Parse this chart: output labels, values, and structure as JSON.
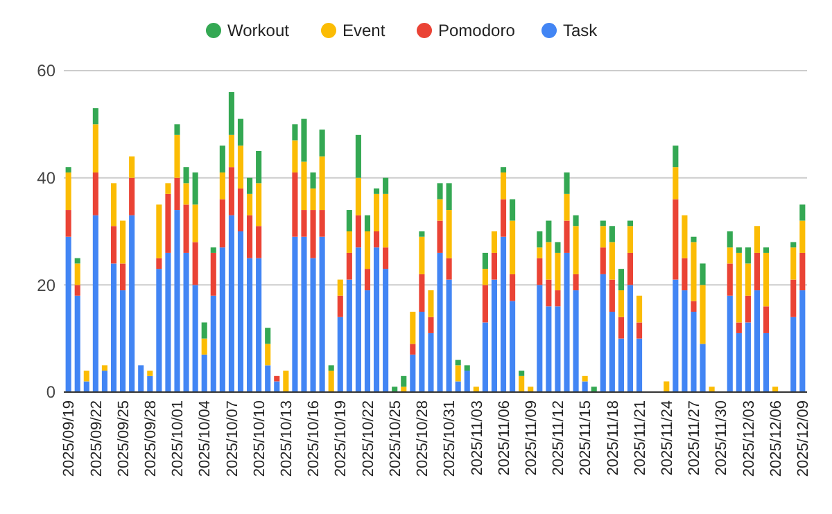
{
  "chart_data": {
    "type": "bar",
    "stacked": true,
    "legend": "top",
    "grid": "y",
    "ylim": [
      0,
      60
    ],
    "yticks": [
      0,
      20,
      40,
      60
    ],
    "categories": [
      "2025/09/19",
      null,
      null,
      "2025/09/22",
      null,
      null,
      "2025/09/25",
      null,
      null,
      "2025/09/28",
      null,
      null,
      "2025/10/01",
      null,
      null,
      "2025/10/04",
      null,
      null,
      "2025/10/07",
      null,
      null,
      "2025/10/10",
      null,
      null,
      "2025/10/13",
      null,
      null,
      "2025/10/16",
      null,
      null,
      "2025/10/19",
      null,
      null,
      "2025/10/22",
      null,
      null,
      "2025/10/25",
      null,
      null,
      "2025/10/28",
      null,
      null,
      "2025/10/31",
      null,
      null,
      "2025/11/03",
      null,
      null,
      "2025/11/06",
      null,
      null,
      "2025/11/09",
      null,
      null,
      "2025/11/12",
      null,
      null,
      "2025/11/15",
      null,
      null,
      "2025/11/18",
      null,
      null,
      "2025/11/21",
      null,
      null,
      "2025/11/24",
      null,
      null,
      "2025/11/27",
      null,
      null,
      "2025/11/30",
      null,
      null,
      "2025/12/03",
      null,
      null,
      "2025/12/06",
      null,
      null,
      "2025/12/09"
    ],
    "series": [
      {
        "name": "Task",
        "color": "#4285f4",
        "values": [
          29,
          18,
          2,
          33,
          4,
          24,
          19,
          33,
          5,
          3,
          23,
          26,
          34,
          26,
          20,
          7,
          18,
          27,
          33,
          30,
          25,
          25,
          5,
          2,
          0,
          29,
          29,
          25,
          29,
          0,
          14,
          21,
          27,
          19,
          27,
          23,
          0,
          0,
          7,
          15,
          11,
          26,
          21,
          2,
          4,
          0,
          13,
          21,
          29,
          17,
          0,
          0,
          20,
          16,
          16,
          26,
          19,
          2,
          0,
          22,
          15,
          10,
          20,
          10,
          0,
          0,
          0,
          21,
          19,
          15,
          9,
          0,
          0,
          18,
          11,
          13,
          19,
          11,
          0,
          0,
          14,
          19
        ]
      },
      {
        "name": "Pomodoro",
        "color": "#ea4335",
        "values": [
          5,
          2,
          0,
          8,
          0,
          7,
          5,
          7,
          0,
          0,
          2,
          11,
          6,
          9,
          8,
          0,
          8,
          9,
          9,
          8,
          8,
          6,
          0,
          1,
          0,
          12,
          5,
          9,
          5,
          0,
          4,
          5,
          6,
          4,
          3,
          4,
          0,
          0,
          2,
          7,
          3,
          6,
          4,
          0,
          0,
          0,
          7,
          5,
          7,
          5,
          0,
          0,
          5,
          5,
          3,
          6,
          3,
          0,
          0,
          5,
          6,
          4,
          6,
          3,
          0,
          0,
          0,
          15,
          6,
          2,
          0,
          0,
          0,
          6,
          2,
          5,
          7,
          5,
          0,
          0,
          7,
          7
        ]
      },
      {
        "name": "Event",
        "color": "#fbbc04",
        "values": [
          7,
          4,
          2,
          9,
          1,
          8,
          8,
          4,
          0,
          1,
          10,
          2,
          8,
          4,
          7,
          3,
          0,
          5,
          6,
          8,
          4,
          8,
          4,
          0,
          4,
          6,
          9,
          4,
          10,
          4,
          3,
          4,
          7,
          7,
          7,
          10,
          0,
          1,
          6,
          7,
          5,
          4,
          9,
          3,
          0,
          1,
          3,
          4,
          5,
          10,
          3,
          1,
          2,
          7,
          7,
          5,
          9,
          1,
          0,
          4,
          7,
          5,
          5,
          5,
          0,
          0,
          2,
          6,
          8,
          11,
          11,
          1,
          0,
          3,
          13,
          6,
          5,
          10,
          1,
          0,
          6,
          6
        ]
      },
      {
        "name": "Workout",
        "color": "#34a853",
        "values": [
          1,
          1,
          0,
          3,
          0,
          0,
          0,
          0,
          0,
          0,
          0,
          0,
          2,
          3,
          6,
          3,
          1,
          5,
          8,
          5,
          3,
          6,
          3,
          0,
          0,
          3,
          8,
          3,
          5,
          1,
          0,
          4,
          8,
          3,
          1,
          3,
          1,
          2,
          0,
          1,
          0,
          3,
          5,
          1,
          1,
          0,
          3,
          0,
          1,
          4,
          1,
          0,
          3,
          4,
          2,
          4,
          2,
          0,
          1,
          1,
          3,
          4,
          1,
          0,
          0,
          0,
          0,
          4,
          0,
          1,
          4,
          0,
          0,
          3,
          1,
          3,
          0,
          1,
          0,
          0,
          1,
          3
        ]
      }
    ]
  }
}
